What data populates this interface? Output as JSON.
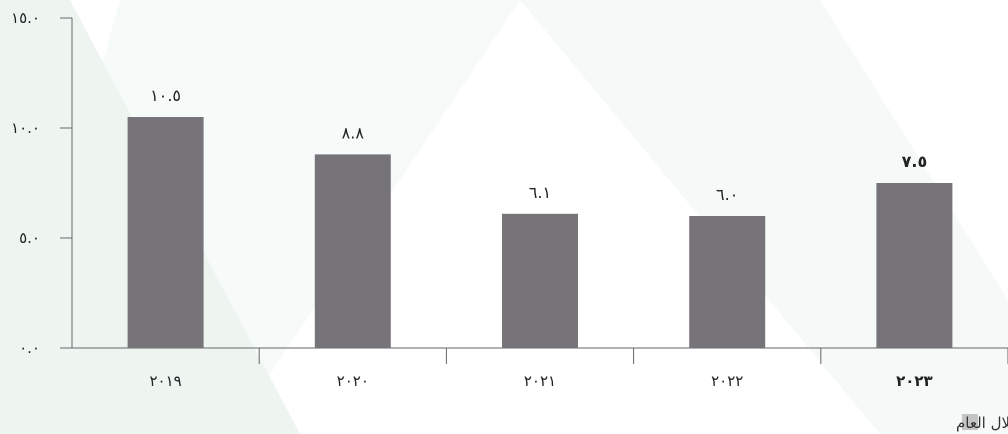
{
  "chart_data": {
    "type": "bar",
    "categories": [
      "٢٠١٩",
      "٢٠٢٠",
      "٢٠٢١",
      "٢٠٢٢",
      "٢٠٢٣"
    ],
    "values": [
      10.5,
      8.8,
      6.1,
      6.0,
      7.5
    ],
    "value_labels": [
      "١٠.٥",
      "٨.٨",
      "٦.١",
      "٦.٠",
      "٧.٥"
    ],
    "highlighted_category": "٢٠٢٣",
    "yticks": [
      0,
      5,
      10,
      15
    ],
    "ytick_labels": [
      "٠.٠",
      "٥.٠",
      "١٠.٠",
      "١٥.٠"
    ],
    "ylim": [
      0,
      15
    ],
    "title": "",
    "xlabel": "",
    "ylabel": "",
    "grid": false,
    "legend": {
      "placement": "bottom-right",
      "entries": [
        {
          "name": "مدفوع خلال العام",
          "color": "#767478"
        }
      ]
    },
    "colors": {
      "bar": "#767478",
      "axis": "#666666",
      "background": "#ffffff",
      "stripe": "#eef5f1",
      "legend_swatch": "#c4c4c4"
    }
  }
}
